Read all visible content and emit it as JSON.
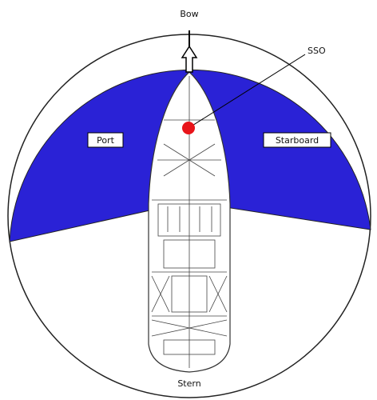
{
  "labels": {
    "bow": "Bow",
    "stern": "Stern",
    "port": "Port",
    "starboard": "Starboard",
    "sso": "SSO"
  }
}
